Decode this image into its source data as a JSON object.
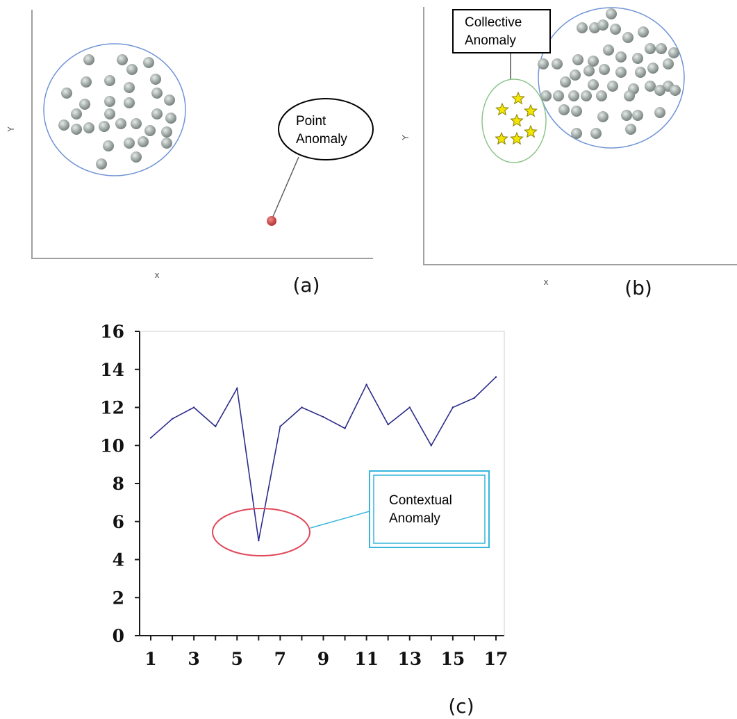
{
  "panel_a": {
    "axis_x": "x",
    "axis_y": "Y",
    "callout_line1": "Point",
    "callout_line2": "Anomaly",
    "caption": "(a)"
  },
  "panel_b": {
    "axis_x": "x",
    "axis_y": "Y",
    "callout_line1": "Collective",
    "callout_line2": "Anomaly",
    "caption": "(b)"
  },
  "panel_c": {
    "callout_line1": "Contextual",
    "callout_line2": "Anomaly",
    "caption": "(c)"
  },
  "colors": {
    "point": "#9aa39f",
    "cluster_outline": "#6f93d6",
    "group_outline": "#8cc48c",
    "anomaly_point": "#cc3b3b",
    "star": "#f2e600",
    "series_line": "#2b2b8a",
    "highlight_ellipse": "#e0485a",
    "callout_box": "#35b6dc"
  },
  "chart_data": {
    "type": "line",
    "x": [
      1,
      2,
      3,
      4,
      5,
      6,
      7,
      8,
      9,
      10,
      11,
      12,
      13,
      14,
      15,
      16,
      17
    ],
    "series": [
      {
        "values": [
          10.4,
          11.4,
          12.0,
          11.0,
          13.0,
          5.0,
          11.0,
          12.0,
          11.5,
          10.9,
          13.2,
          11.1,
          12.0,
          10.0,
          12.0,
          12.5,
          13.6
        ]
      }
    ],
    "xticks": [
      "1",
      "3",
      "5",
      "7",
      "9",
      "11",
      "13",
      "15",
      "17"
    ],
    "yticks": [
      "0",
      "2",
      "4",
      "6",
      "8",
      "10",
      "12",
      "14",
      "16"
    ],
    "xlim": [
      1,
      17
    ],
    "ylim": [
      0,
      16
    ],
    "grid": false,
    "legend": "none"
  }
}
